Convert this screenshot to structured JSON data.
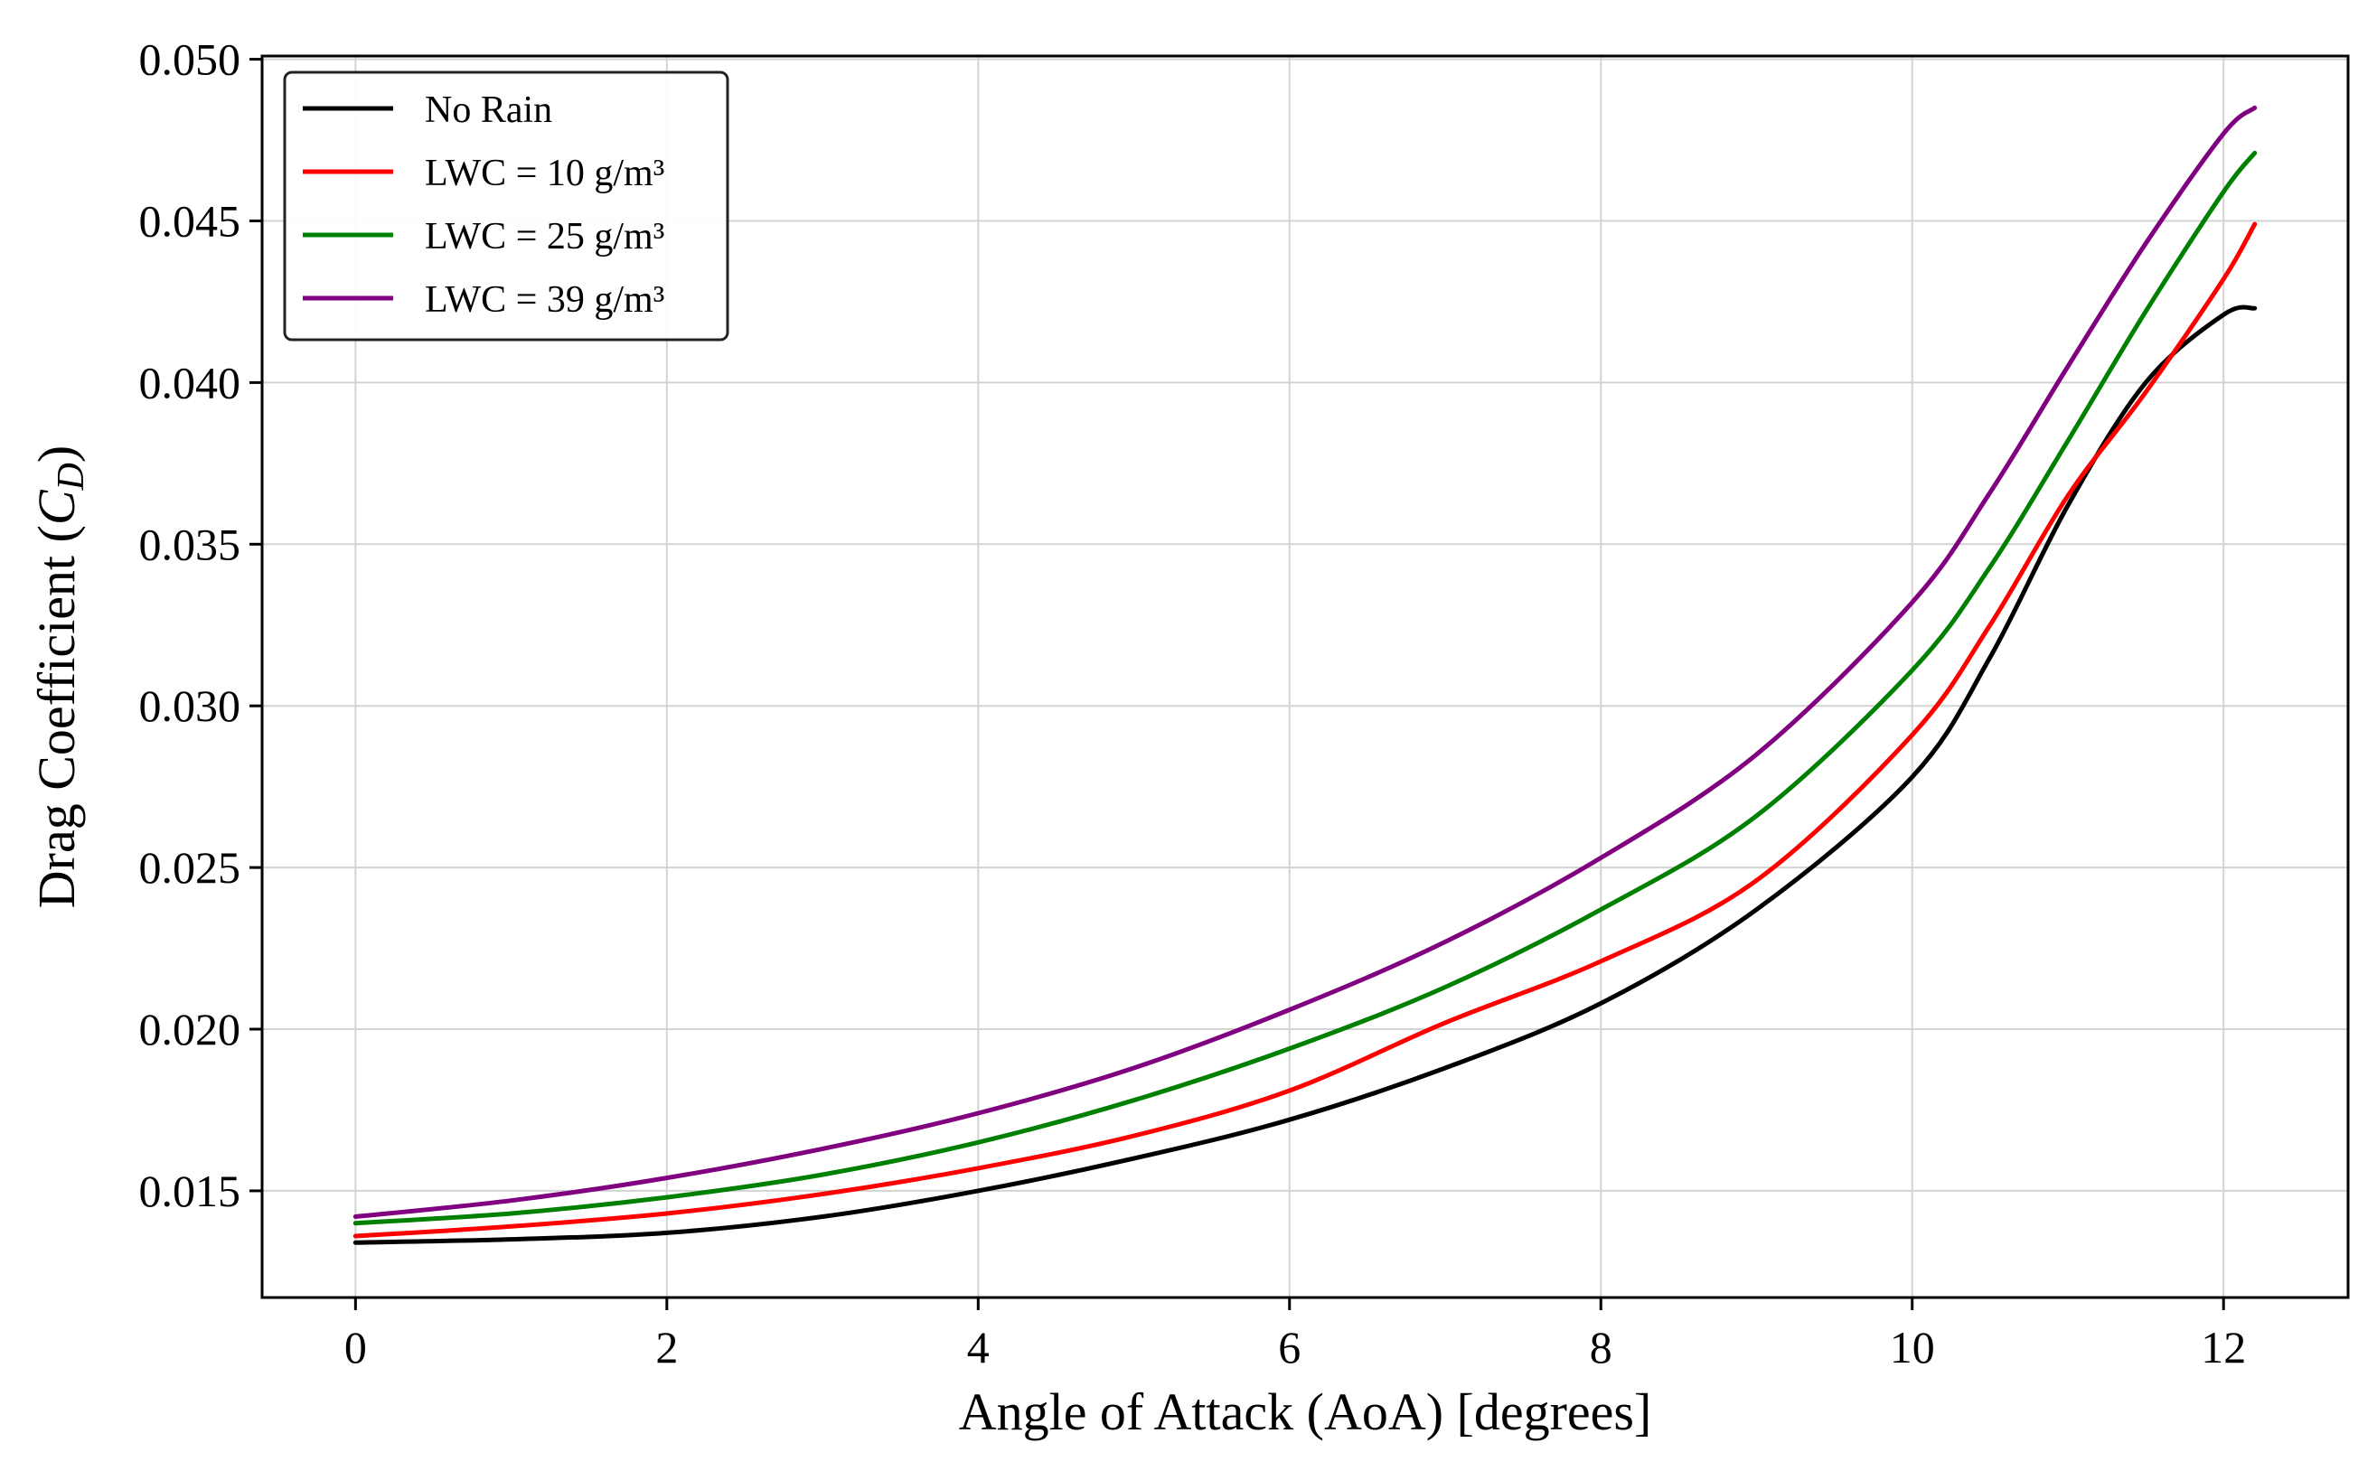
{
  "chart_data": {
    "type": "line",
    "title": "",
    "xlabel": "Angle of Attack (AoA) [degrees]",
    "ylabel_prefix": "Drag Coefficient (",
    "ylabel_symbol": "C",
    "ylabel_subscript": "D",
    "ylabel_suffix": ")",
    "xlim": [
      -0.6,
      12.8
    ],
    "ylim": [
      0.0117,
      0.0501
    ],
    "xticks": [
      0,
      2,
      4,
      6,
      8,
      10,
      12
    ],
    "xtick_labels": [
      "0",
      "2",
      "4",
      "6",
      "8",
      "10",
      "12"
    ],
    "yticks": [
      0.015,
      0.02,
      0.025,
      0.03,
      0.035,
      0.04,
      0.045,
      0.05
    ],
    "ytick_labels": [
      "0.015",
      "0.020",
      "0.025",
      "0.030",
      "0.035",
      "0.040",
      "0.045",
      "0.050"
    ],
    "grid": true,
    "legend_position": "top-left",
    "x": [
      0,
      1,
      2,
      3,
      4,
      5,
      6,
      7,
      8,
      9,
      10,
      10.5,
      11,
      11.5,
      12,
      12.2
    ],
    "series": [
      {
        "name": "No Rain",
        "color": "#000000",
        "values": [
          0.0134,
          0.0135,
          0.0137,
          0.0142,
          0.015,
          0.016,
          0.0172,
          0.0188,
          0.0208,
          0.0237,
          0.0278,
          0.0315,
          0.0362,
          0.04,
          0.0421,
          0.0423
        ]
      },
      {
        "name": "LWC = 10 g/m³",
        "color": "#ff0000",
        "values": [
          0.0136,
          0.0139,
          0.0143,
          0.0149,
          0.0157,
          0.0167,
          0.0181,
          0.0202,
          0.0221,
          0.0246,
          0.0291,
          0.0325,
          0.0365,
          0.0397,
          0.0432,
          0.0449
        ]
      },
      {
        "name": "LWC = 25 g/m³",
        "color": "#008000",
        "values": [
          0.014,
          0.0143,
          0.0148,
          0.0155,
          0.0165,
          0.0178,
          0.0194,
          0.0213,
          0.0237,
          0.0266,
          0.0311,
          0.0343,
          0.0382,
          0.0422,
          0.0459,
          0.0471
        ]
      },
      {
        "name": "LWC = 39 g/m³",
        "color": "#800080",
        "values": [
          0.0142,
          0.0147,
          0.0154,
          0.0163,
          0.0174,
          0.0188,
          0.0206,
          0.0227,
          0.0253,
          0.0285,
          0.0332,
          0.0366,
          0.0405,
          0.0443,
          0.0477,
          0.0485
        ]
      }
    ]
  }
}
